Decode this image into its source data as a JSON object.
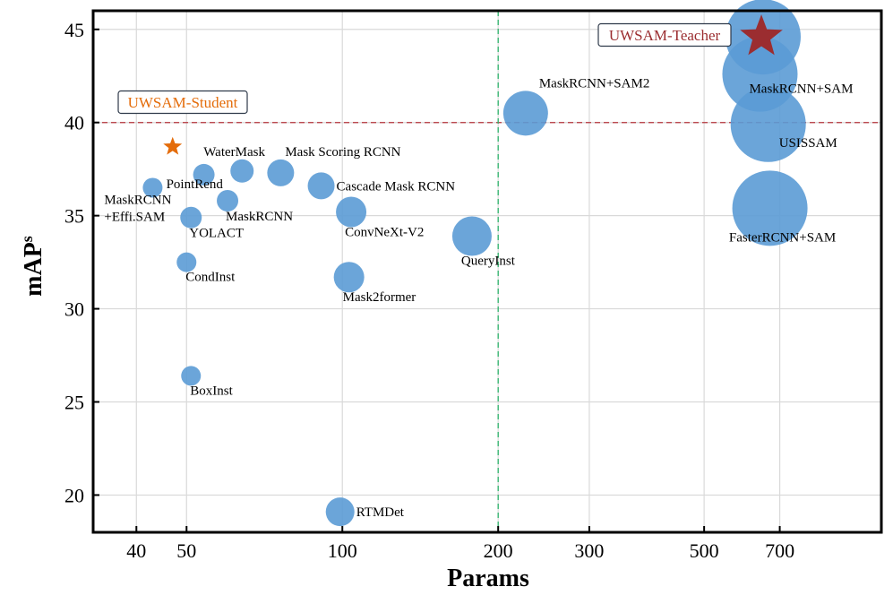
{
  "chart_data": {
    "type": "scatter",
    "subtype": "bubble",
    "title": "",
    "xlabel": "Params",
    "ylabel_main": "mAP",
    "ylabel_sup": "s",
    "xscale": "log",
    "xlim": [
      33,
      1100
    ],
    "ylim": [
      18,
      46
    ],
    "xticks": [
      40,
      50,
      100,
      200,
      300,
      500,
      700
    ],
    "xtick_labels": [
      "40",
      "50",
      "100",
      "200",
      "300",
      "500",
      "700"
    ],
    "yticks": [
      20,
      25,
      30,
      35,
      40,
      45
    ],
    "ytick_labels": [
      "20",
      "25",
      "30",
      "35",
      "40",
      "45"
    ],
    "grid": true,
    "bubble_color": "#5b9bd5",
    "points": [
      {
        "name": "MaskRCNN\n+Effi.SAM",
        "label_lines": [
          "MaskRCNN",
          "+Effi.SAM"
        ],
        "x": 43,
        "y": 36.5,
        "size": 11,
        "label_pos": "below-left"
      },
      {
        "name": "PointRend",
        "label_lines": [
          "PointRend"
        ],
        "x": 54,
        "y": 37.2,
        "size": 12,
        "label_pos": "below-left"
      },
      {
        "name": "WaterMask",
        "label_lines": [
          "WaterMask"
        ],
        "x": 64,
        "y": 37.4,
        "size": 13,
        "label_pos": "above-left"
      },
      {
        "name": "Mask Scoring RCNN",
        "label_lines": [
          "Mask Scoring RCNN"
        ],
        "x": 76,
        "y": 37.3,
        "size": 15,
        "label_pos": "above-right"
      },
      {
        "name": "Cascade Mask RCNN",
        "label_lines": [
          "Cascade Mask RCNN"
        ],
        "x": 91,
        "y": 36.6,
        "size": 15,
        "label_pos": "right"
      },
      {
        "name": "MaskRCNN",
        "label_lines": [
          "MaskRCNN"
        ],
        "x": 60,
        "y": 35.8,
        "size": 12,
        "label_pos": "below-right"
      },
      {
        "name": "YOLACT",
        "label_lines": [
          "YOLACT"
        ],
        "x": 51,
        "y": 34.9,
        "size": 12,
        "label_pos": "below-right"
      },
      {
        "name": "ConvNeXt-V2",
        "label_lines": [
          "ConvNeXt-V2"
        ],
        "x": 104,
        "y": 35.2,
        "size": 17,
        "label_pos": "below-right"
      },
      {
        "name": "QueryInst",
        "label_lines": [
          "QueryInst"
        ],
        "x": 178,
        "y": 33.9,
        "size": 22,
        "label_pos": "below-right"
      },
      {
        "name": "CondInst",
        "label_lines": [
          "CondInst"
        ],
        "x": 50,
        "y": 32.5,
        "size": 11,
        "label_pos": "below-right"
      },
      {
        "name": "Mask2former",
        "label_lines": [
          "Mask2former"
        ],
        "x": 103,
        "y": 31.7,
        "size": 17,
        "label_pos": "below-right"
      },
      {
        "name": "BoxInst",
        "label_lines": [
          "BoxInst"
        ],
        "x": 51,
        "y": 26.4,
        "size": 11,
        "label_pos": "below-right"
      },
      {
        "name": "RTMDet",
        "label_lines": [
          "RTMDet"
        ],
        "x": 99,
        "y": 19.1,
        "size": 16,
        "label_pos": "right"
      },
      {
        "name": "MaskRCNN+SAM2",
        "label_lines": [
          "MaskRCNN+SAM2"
        ],
        "x": 226,
        "y": 40.5,
        "size": 25,
        "label_pos": "above-right"
      },
      {
        "name": "MaskRCNN+SAM",
        "label_lines": [
          "MaskRCNN+SAM"
        ],
        "x": 641,
        "y": 42.6,
        "size": 42,
        "label_pos": "below-right"
      },
      {
        "name": "USISSAM",
        "label_lines": [
          "USISSAM"
        ],
        "x": 665,
        "y": 39.9,
        "size": 42,
        "label_pos": "right"
      },
      {
        "name": "FasterRCNN+SAM",
        "label_lines": [
          "FasterRCNN+SAM"
        ],
        "x": 670,
        "y": 35.4,
        "size": 42,
        "label_pos": "below"
      },
      {
        "name": "",
        "label_lines": [],
        "x": 650,
        "y": 44.6,
        "size": 42,
        "label_pos": "none"
      }
    ],
    "reference_lines": [
      {
        "orientation": "horizontal",
        "y": 40,
        "color": "#b5343c",
        "style": "dashed"
      },
      {
        "orientation": "vertical",
        "x": 200,
        "color": "#2db36b",
        "style": "dashed"
      }
    ],
    "stars": [
      {
        "name": "UWSAM-Student",
        "x": 47,
        "y": 38.7,
        "color": "#e46c0a",
        "size": "small"
      },
      {
        "name": "UWSAM-Teacher",
        "x": 645,
        "y": 44.6,
        "color": "#9b2d30",
        "size": "large"
      }
    ],
    "annotations": [
      {
        "text": "UWSAM-Student",
        "color": "#e46c0a",
        "anchor_x": 47,
        "anchor_y": 40.8
      },
      {
        "text": "UWSAM-Teacher",
        "color": "#9b2d30",
        "anchor_x": 645,
        "anchor_y": 44.5
      }
    ]
  }
}
